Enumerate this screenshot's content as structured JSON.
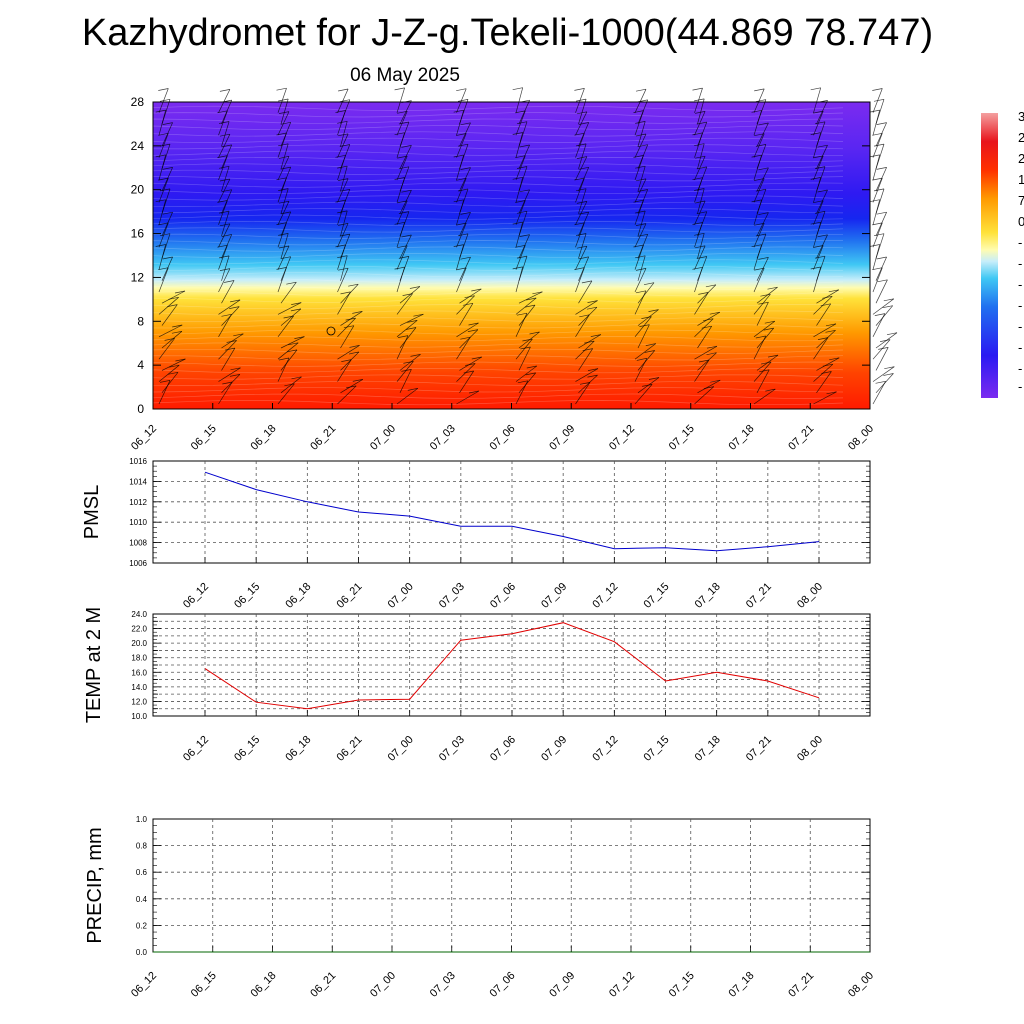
{
  "header": {
    "title": "Kazhydromet for J-Z-g.Tekeli-1000(44.869 78.747)",
    "date": "06 May 2025"
  },
  "time_labels": [
    "06_12",
    "06_15",
    "06_18",
    "06_21",
    "07_00",
    "07_03",
    "07_06",
    "07_09",
    "07_12",
    "07_15",
    "07_18",
    "07_21",
    "08_00"
  ],
  "colors": {
    "pmsl_line": "#0000cc",
    "temp_line": "#e00000",
    "precip_line": "#006400",
    "grid": "#555555"
  },
  "chart_data": [
    {
      "type": "heatmap",
      "name": "vertical-profile",
      "ylim": [
        0,
        28
      ],
      "y_ticks": [
        "0",
        "4",
        "8",
        "12",
        "16",
        "20",
        "24",
        "28"
      ],
      "x_ticks": [
        "06_12",
        "06_15",
        "06_18",
        "06_21",
        "07_00",
        "07_03",
        "07_06",
        "07_09",
        "07_12",
        "07_15",
        "07_18",
        "07_21",
        "08_00"
      ],
      "legend_placement": "right",
      "colorbar_labels": [
        "3",
        "2",
        "2",
        "1",
        "7",
        "0",
        "-",
        "-",
        "-",
        "-",
        "-",
        "-",
        "-",
        "-"
      ]
    },
    {
      "type": "line",
      "name": "pmsl",
      "ylabel": "PMSL",
      "ylim": [
        1006,
        1016
      ],
      "y_ticks": [
        "1006",
        "1008",
        "1010",
        "1012",
        "1014",
        "1016"
      ],
      "x": [
        "06_12",
        "06_15",
        "06_18",
        "06_21",
        "07_00",
        "07_03",
        "07_06",
        "07_09",
        "07_12",
        "07_15",
        "07_18",
        "07_21",
        "08_00"
      ],
      "values": [
        1014.9,
        1013.2,
        1012.0,
        1011.0,
        1010.6,
        1009.6,
        1009.6,
        1008.6,
        1007.4,
        1007.5,
        1007.2,
        1007.6,
        1008.1
      ],
      "grid": true
    },
    {
      "type": "line",
      "name": "temp",
      "ylabel": "TEMP at 2 M",
      "ylim": [
        10,
        24
      ],
      "y_ticks": [
        "10.0",
        "11.0",
        "12.0",
        "13.0",
        "14.0",
        "15.0",
        "16.0",
        "17.0",
        "18.0",
        "19.0",
        "20.0",
        "21.0",
        "22.0",
        "23.0",
        "24.0"
      ],
      "y_tick_labels": [
        "10.0",
        "12.0",
        "14.0",
        "16.0",
        "18.0",
        "20.0",
        "22.0",
        "24.0"
      ],
      "x": [
        "06_12",
        "06_15",
        "06_18",
        "06_21",
        "07_00",
        "07_03",
        "07_06",
        "07_09",
        "07_12",
        "07_15",
        "07_18",
        "07_21",
        "08_00"
      ],
      "values": [
        16.5,
        11.9,
        11.0,
        12.2,
        12.3,
        20.4,
        21.3,
        22.8,
        20.2,
        14.8,
        16.0,
        14.8,
        12.5
      ],
      "grid": true
    },
    {
      "type": "line",
      "name": "precip",
      "ylabel": "PRECIP, mm",
      "ylim": [
        0,
        1
      ],
      "y_ticks": [
        "0.0",
        "0.2",
        "0.4",
        "0.6",
        "0.8",
        "1.0"
      ],
      "x": [
        "06_12",
        "06_15",
        "06_18",
        "06_21",
        "07_00",
        "07_03",
        "07_06",
        "07_09",
        "07_12",
        "07_15",
        "07_18",
        "07_21",
        "08_00"
      ],
      "values": [
        0,
        0,
        0,
        0,
        0,
        0,
        0,
        0,
        0,
        0,
        0,
        0,
        0
      ],
      "grid": true
    }
  ]
}
